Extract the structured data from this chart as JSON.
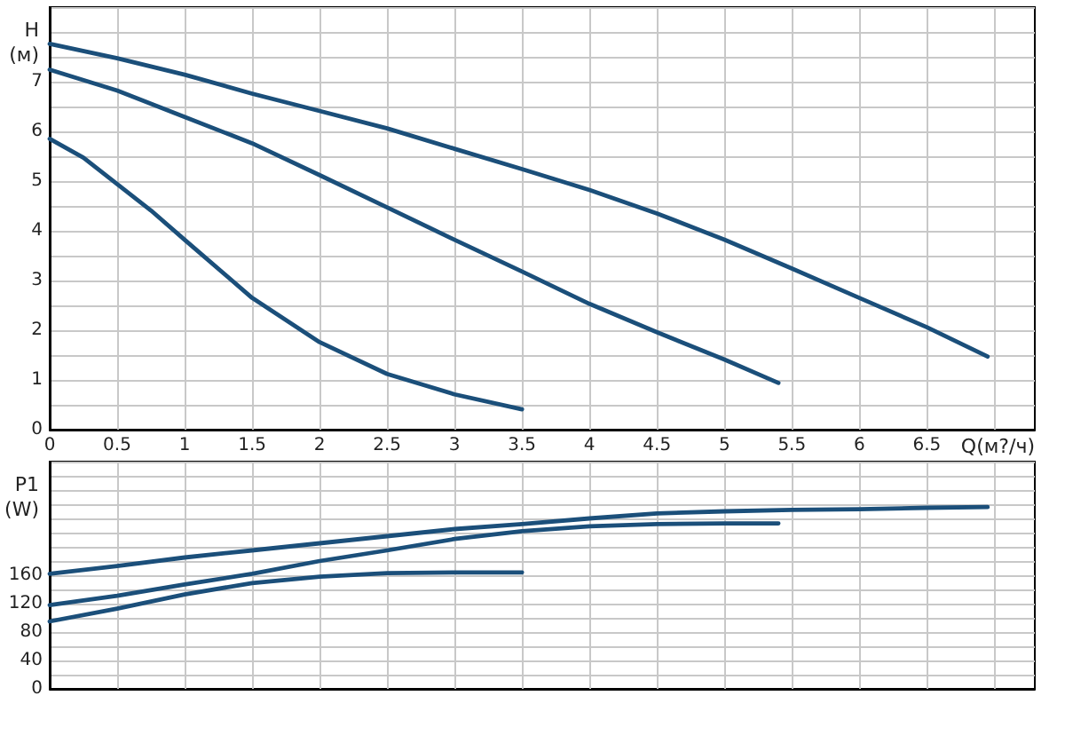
{
  "chart_data": [
    {
      "type": "line",
      "xlabel": "Q(м?/ч)",
      "ylabel": "H (м)",
      "xlim": [
        0,
        7.3
      ],
      "ylim": [
        0,
        8.5
      ],
      "grid": true,
      "xticks": [
        0,
        0.5,
        1,
        1.5,
        2,
        2.5,
        3,
        3.5,
        4,
        4.5,
        5,
        5.5,
        6,
        6.5,
        {
          "value": 7,
          "label": null
        }
      ],
      "yticks": [
        0,
        {
          "value": 0.5,
          "label": null
        },
        1,
        {
          "value": 1.5,
          "label": null
        },
        2,
        {
          "value": 2.5,
          "label": null
        },
        3,
        {
          "value": 3.5,
          "label": null
        },
        4,
        {
          "value": 4.5,
          "label": null
        },
        5,
        {
          "value": 5.5,
          "label": null
        },
        6,
        {
          "value": 6.5,
          "label": null
        },
        7,
        {
          "value": 7.5,
          "label": null
        },
        {
          "value": 8,
          "label": null
        },
        {
          "value": 8.5,
          "label": null
        }
      ],
      "marker": "none",
      "line_style": "solid",
      "series": [
        {
          "color": "#1b4f7a",
          "x": [
            0,
            0.5,
            1,
            1.5,
            2,
            2.5,
            3,
            3.5,
            4,
            4.5,
            5,
            5.5,
            6,
            6.5,
            6.95
          ],
          "values": [
            7.76,
            7.47,
            7.14,
            6.76,
            6.41,
            6.06,
            5.65,
            5.24,
            4.82,
            4.35,
            3.82,
            3.24,
            2.65,
            2.06,
            1.47
          ]
        },
        {
          "color": "#1b4f7a",
          "x": [
            0,
            0.5,
            1,
            1.5,
            2,
            2.5,
            3,
            3.5,
            4,
            4.5,
            5,
            5.4
          ],
          "values": [
            7.24,
            6.82,
            6.29,
            5.76,
            5.12,
            4.47,
            3.82,
            3.18,
            2.53,
            1.96,
            1.41,
            0.94
          ]
        },
        {
          "color": "#1b4f7a",
          "x": [
            0,
            0.25,
            0.5,
            0.75,
            1,
            1.5,
            2,
            2.5,
            3,
            3.5
          ],
          "values": [
            5.85,
            5.47,
            4.94,
            4.41,
            3.82,
            2.65,
            1.76,
            1.12,
            0.71,
            0.41
          ]
        }
      ]
    },
    {
      "type": "line",
      "ylabel": "P1 (W)",
      "xlim": [
        0,
        7.3
      ],
      "ylim": [
        0,
        320
      ],
      "tick_labels": "y",
      "xticks": [
        0,
        0.5,
        1,
        1.5,
        2,
        2.5,
        3,
        3.5,
        4,
        4.5,
        5,
        5.5,
        6,
        6.5,
        7
      ],
      "yticks": [
        0,
        {
          "value": 20,
          "label": null
        },
        40,
        {
          "value": 60,
          "label": null
        },
        80,
        {
          "value": 100,
          "label": null
        },
        120,
        {
          "value": 140,
          "label": null
        },
        160,
        {
          "value": 180,
          "label": null
        },
        {
          "value": 200,
          "label": null
        },
        {
          "value": 220,
          "label": null
        },
        {
          "value": 240,
          "label": null
        },
        {
          "value": 260,
          "label": null
        },
        {
          "value": 280,
          "label": null
        },
        {
          "value": 300,
          "label": null
        },
        {
          "value": 320,
          "label": null
        }
      ],
      "grid": true,
      "marker": "none",
      "line_style": "solid",
      "series": [
        {
          "color": "#1b4f7a",
          "x": [
            0,
            0.5,
            1,
            1.5,
            2,
            2.5,
            3,
            3.5,
            4,
            4.5,
            5,
            5.5,
            6,
            6.5,
            6.95
          ],
          "values": [
            162,
            173,
            185,
            195,
            205,
            215,
            225,
            232,
            240,
            247,
            250,
            252,
            253,
            255,
            256
          ]
        },
        {
          "color": "#1b4f7a",
          "x": [
            0,
            0.5,
            1,
            1.5,
            2,
            2.5,
            3,
            3.5,
            4,
            4.5,
            5,
            5.4
          ],
          "values": [
            118,
            131,
            147,
            162,
            180,
            195,
            211,
            222,
            229,
            232,
            233,
            233
          ]
        },
        {
          "color": "#1b4f7a",
          "x": [
            0,
            0.5,
            1,
            1.5,
            2,
            2.5,
            3,
            3.5
          ],
          "values": [
            95,
            113,
            133,
            149,
            158,
            163,
            164,
            164
          ]
        }
      ]
    }
  ]
}
